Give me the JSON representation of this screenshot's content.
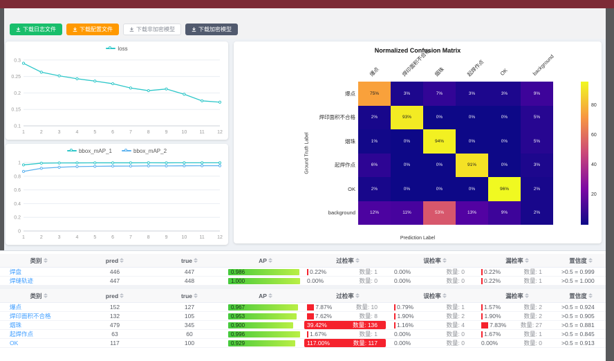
{
  "toolbar": {
    "buttons": [
      {
        "label": "下载日志文件",
        "variant": "success"
      },
      {
        "label": "下载配置文件",
        "variant": "warning"
      },
      {
        "label": "下载非加密模型",
        "variant": "plain"
      },
      {
        "label": "下载加密模型",
        "variant": "dark"
      }
    ]
  },
  "chart_data": [
    {
      "id": "loss",
      "type": "line",
      "legend": [
        "loss"
      ],
      "x": [
        1,
        2,
        3,
        4,
        5,
        6,
        7,
        8,
        9,
        10,
        11,
        12
      ],
      "series": [
        {
          "name": "loss",
          "color": "#2ec7c9",
          "values": [
            0.29,
            0.263,
            0.252,
            0.243,
            0.236,
            0.228,
            0.215,
            0.207,
            0.212,
            0.196,
            0.176,
            0.172
          ]
        }
      ],
      "ylim": [
        0.1,
        0.31
      ],
      "yticks": [
        0.1,
        0.15,
        0.2,
        0.25,
        0.3
      ]
    },
    {
      "id": "bbox_map",
      "type": "line",
      "legend": [
        "bbox_mAP_1",
        "bbox_mAP_2"
      ],
      "x": [
        1,
        2,
        3,
        4,
        5,
        6,
        7,
        8,
        9,
        10,
        11,
        12
      ],
      "series": [
        {
          "name": "bbox_mAP_1",
          "color": "#2ec7c9",
          "values": [
            0.965,
            0.99,
            0.993,
            0.994,
            0.995,
            0.995,
            0.995,
            0.996,
            0.995,
            0.996,
            0.996,
            0.996
          ]
        },
        {
          "name": "bbox_mAP_2",
          "color": "#5ab1ef",
          "values": [
            0.87,
            0.915,
            0.93,
            0.94,
            0.944,
            0.947,
            0.948,
            0.95,
            0.95,
            0.952,
            0.953,
            0.953
          ]
        }
      ],
      "ylim": [
        0,
        1.05
      ],
      "yticks": [
        0,
        0.2,
        0.4,
        0.6,
        0.8,
        1
      ]
    },
    {
      "id": "confusion",
      "type": "heatmap",
      "title": "Normalized Confusion Matrix",
      "xlabel": "Prediction Label",
      "ylabel": "Ground Truth Label",
      "classes": [
        "爆点",
        "焊印面积不合格",
        "烟珠",
        "起焊作点",
        "OK",
        "background"
      ],
      "matrix": [
        [
          75,
          3,
          7,
          3,
          3,
          9
        ],
        [
          2,
          93,
          0,
          0,
          0,
          5
        ],
        [
          1,
          0,
          94,
          0,
          0,
          5
        ],
        [
          6,
          0,
          0,
          91,
          0,
          3
        ],
        [
          2,
          0,
          0,
          0,
          96,
          2
        ],
        [
          12,
          11,
          53,
          13,
          9,
          2
        ]
      ],
      "vmin": 0,
      "vmax": 96,
      "colorbar_ticks": [
        20,
        40,
        60,
        80
      ]
    }
  ],
  "tables": [
    {
      "headers": [
        "类别",
        "pred",
        "true",
        "AP",
        "过检率",
        "误检率",
        "漏检率",
        "置信度"
      ],
      "rows": [
        {
          "label": "焊盘",
          "pred": "446",
          "true": "447",
          "ap": "0.986",
          "ap_val": 0.986,
          "od": {
            "pct": 0.22,
            "label": "0.22%",
            "count": "数量: 1",
            "alert": false
          },
          "mj": {
            "pct": 0.0,
            "label": "0.00%",
            "count": "数量: 0"
          },
          "ms": {
            "pct": 0.22,
            "label": "0.22%",
            "count": "数量: 1"
          },
          "conf": ">0.5 = 0.999"
        },
        {
          "label": "焊缝轨迹",
          "pred": "447",
          "true": "448",
          "ap": "1.000",
          "ap_val": 1.0,
          "od": {
            "pct": 0.0,
            "label": "0.00%",
            "count": "数量: 0",
            "alert": false
          },
          "mj": {
            "pct": 0.0,
            "label": "0.00%",
            "count": "数量: 0"
          },
          "ms": {
            "pct": 0.22,
            "label": "0.22%",
            "count": "数量: 1"
          },
          "conf": ">0.5 = 1.000"
        }
      ]
    },
    {
      "headers": [
        "类别",
        "pred",
        "true",
        "AP",
        "过检率",
        "误检率",
        "漏检率",
        "置信度"
      ],
      "rows": [
        {
          "label": "爆点",
          "pred": "152",
          "true": "127",
          "ap": "0.967",
          "ap_val": 0.967,
          "od": {
            "pct": 7.87,
            "label": "7.87%",
            "count": "数量: 10",
            "alert": false
          },
          "mj": {
            "pct": 0.79,
            "label": "0.79%",
            "count": "数量: 1"
          },
          "ms": {
            "pct": 1.57,
            "label": "1.57%",
            "count": "数量: 2"
          },
          "conf": ">0.5 = 0.924"
        },
        {
          "label": "焊印面积不合格",
          "pred": "132",
          "true": "105",
          "ap": "0.953",
          "ap_val": 0.953,
          "od": {
            "pct": 7.62,
            "label": "7.62%",
            "count": "数量: 8",
            "alert": false
          },
          "mj": {
            "pct": 1.9,
            "label": "1.90%",
            "count": "数量: 2"
          },
          "ms": {
            "pct": 1.9,
            "label": "1.90%",
            "count": "数量: 2"
          },
          "conf": ">0.5 = 0.905"
        },
        {
          "label": "烟珠",
          "pred": "479",
          "true": "345",
          "ap": "0.900",
          "ap_val": 0.9,
          "od": {
            "pct": 39.42,
            "label": "39.42%",
            "count": "数量: 136",
            "alert": true
          },
          "mj": {
            "pct": 1.16,
            "label": "1.16%",
            "count": "数量: 4"
          },
          "ms": {
            "pct": 7.83,
            "label": "7.83%",
            "count": "数量: 27"
          },
          "conf": ">0.5 = 0.881"
        },
        {
          "label": "起焊作点",
          "pred": "63",
          "true": "60",
          "ap": "0.996",
          "ap_val": 0.996,
          "od": {
            "pct": 1.67,
            "label": "1.67%",
            "count": "数量: 1",
            "alert": false
          },
          "mj": {
            "pct": 0.0,
            "label": "0.00%",
            "count": "数量: 0"
          },
          "ms": {
            "pct": 1.67,
            "label": "1.67%",
            "count": "数量: 1"
          },
          "conf": ">0.5 = 0.845"
        },
        {
          "label": "OK",
          "pred": "117",
          "true": "100",
          "ap": "0.929",
          "ap_val": 0.929,
          "od": {
            "pct": 117.0,
            "label": "117.00%",
            "count": "数量: 117",
            "alert": true
          },
          "mj": {
            "pct": 0.0,
            "label": "0.00%",
            "count": "数量: 0"
          },
          "ms": {
            "pct": 0.0,
            "label": "0.00%",
            "count": "数量: 0"
          },
          "conf": ">0.5 = 0.913"
        }
      ]
    }
  ],
  "colors": {
    "alert_red": "#f5222d",
    "ap_gradient_start": "#44c93c",
    "ap_gradient_end": "#b9ef45",
    "link_blue": "#409eff"
  }
}
